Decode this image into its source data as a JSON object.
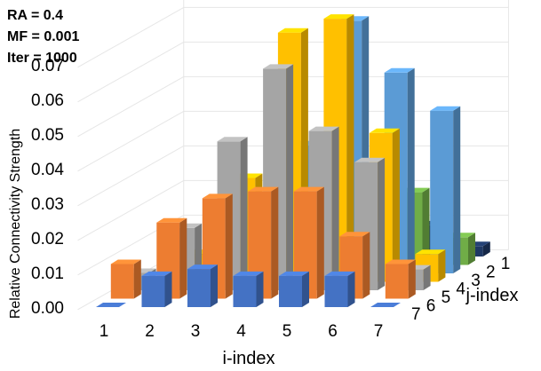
{
  "chart_data": {
    "type": "bar3d",
    "annotations": [
      "RA = 0.4",
      "MF = 0.001",
      "Iter = 1000"
    ],
    "zlabel": "Relative Connectivity Strength",
    "xlabel": "i-index",
    "ylabel": "j-index",
    "zlim": [
      0,
      0.07
    ],
    "zticks": [
      "0.00",
      "0.01",
      "0.02",
      "0.03",
      "0.04",
      "0.05",
      "0.06",
      "0.07"
    ],
    "i_categories": [
      "1",
      "2",
      "3",
      "4",
      "5",
      "6",
      "7"
    ],
    "j_categories": [
      "1",
      "2",
      "3",
      "4",
      "5",
      "6",
      "7"
    ],
    "series": [
      {
        "j": "1",
        "color": "#1f3864",
        "values": [
          0,
          0.0003,
          0.0012,
          0.0028,
          0.008,
          0.009,
          0.003
        ]
      },
      {
        "j": "2",
        "color": "#70ad47",
        "values": [
          0,
          0.0003,
          0.0015,
          0.004,
          0.016,
          0.021,
          0.008
        ]
      },
      {
        "j": "3",
        "color": "#5b9bd5",
        "values": [
          0,
          0.003,
          0.012,
          0.037,
          0.073,
          0.058,
          0.047
        ]
      },
      {
        "j": "4",
        "color": "#ffc000",
        "values": [
          0,
          0.008,
          0.03,
          0.072,
          0.076,
          0.043,
          0.008
        ]
      },
      {
        "j": "5",
        "color": "#a5a5a5",
        "values": [
          0.005,
          0.018,
          0.043,
          0.064,
          0.046,
          0.037,
          0.006
        ]
      },
      {
        "j": "6",
        "color": "#ed7d31",
        "values": [
          0.01,
          0.022,
          0.029,
          0.031,
          0.031,
          0.018,
          0.01
        ]
      },
      {
        "j": "7",
        "color": "#4472c4",
        "values": [
          0,
          0.009,
          0.011,
          0.009,
          0.009,
          0.009,
          0
        ]
      }
    ]
  }
}
